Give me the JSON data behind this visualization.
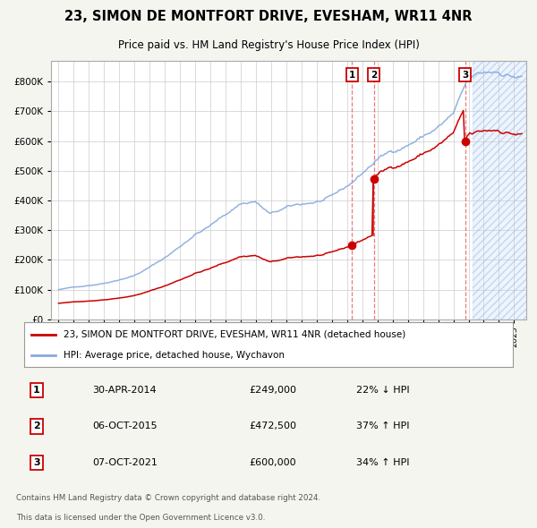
{
  "title": "23, SIMON DE MONTFORT DRIVE, EVESHAM, WR11 4NR",
  "subtitle": "Price paid vs. HM Land Registry's House Price Index (HPI)",
  "legend_property": "23, SIMON DE MONTFORT DRIVE, EVESHAM, WR11 4NR (detached house)",
  "legend_hpi": "HPI: Average price, detached house, Wychavon",
  "sales": [
    {
      "label": "1",
      "date": "30-APR-2014",
      "price": 249000,
      "pct": "22%",
      "dir": "↓",
      "year_float": 2014.33
    },
    {
      "label": "2",
      "date": "06-OCT-2015",
      "price": 472500,
      "pct": "37%",
      "dir": "↑",
      "year_float": 2015.76
    },
    {
      "label": "3",
      "date": "07-OCT-2021",
      "price": 600000,
      "pct": "34%",
      "dir": "↑",
      "year_float": 2021.77
    }
  ],
  "footer1": "Contains HM Land Registry data © Crown copyright and database right 2024.",
  "footer2": "This data is licensed under the Open Government Licence v3.0.",
  "property_color": "#cc0000",
  "hpi_color": "#88aadd",
  "background_color": "#f5f5f0",
  "plot_bg": "#ffffff",
  "grid_color": "#cccccc",
  "ylim_max": 870000,
  "xlim_start": 1994.5,
  "xlim_end": 2025.8,
  "hatch_start": 2022.25,
  "yticks": [
    0,
    100000,
    200000,
    300000,
    400000,
    500000,
    600000,
    700000,
    800000
  ]
}
